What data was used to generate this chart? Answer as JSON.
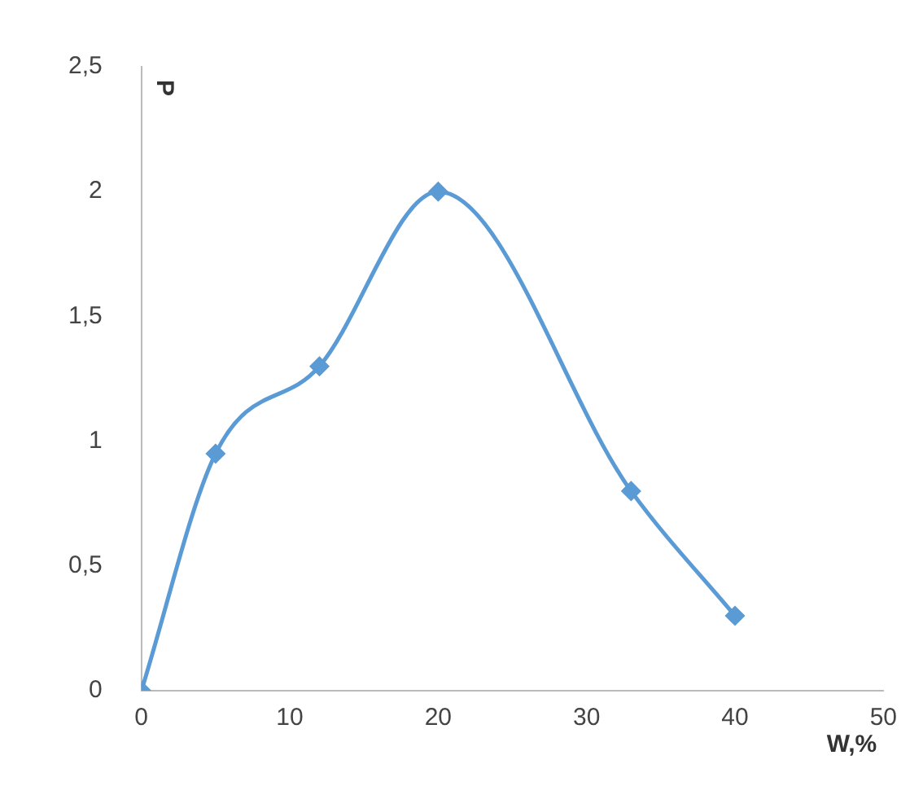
{
  "chart_data": {
    "type": "line",
    "xlabel": "W,%",
    "ylabel": "P",
    "x": [
      0,
      5,
      12,
      20,
      33,
      40
    ],
    "series": [
      {
        "color": "#5b9bd5",
        "values": [
          0,
          0.95,
          1.3,
          2.0,
          0.8,
          0.3
        ]
      }
    ],
    "xlim": [
      0,
      50
    ],
    "xticks": [
      0,
      10,
      20,
      30,
      40,
      50
    ],
    "ylim": [
      0,
      2.5
    ],
    "yticks": [
      0,
      {
        "value": 0.5,
        "label": "0,5"
      },
      1,
      {
        "value": 1.5,
        "label": "1,5"
      },
      2,
      {
        "value": 2.5,
        "label": "2,5"
      }
    ],
    "grid": false,
    "legend": false,
    "marker": "diamond",
    "line_style": "solid"
  }
}
